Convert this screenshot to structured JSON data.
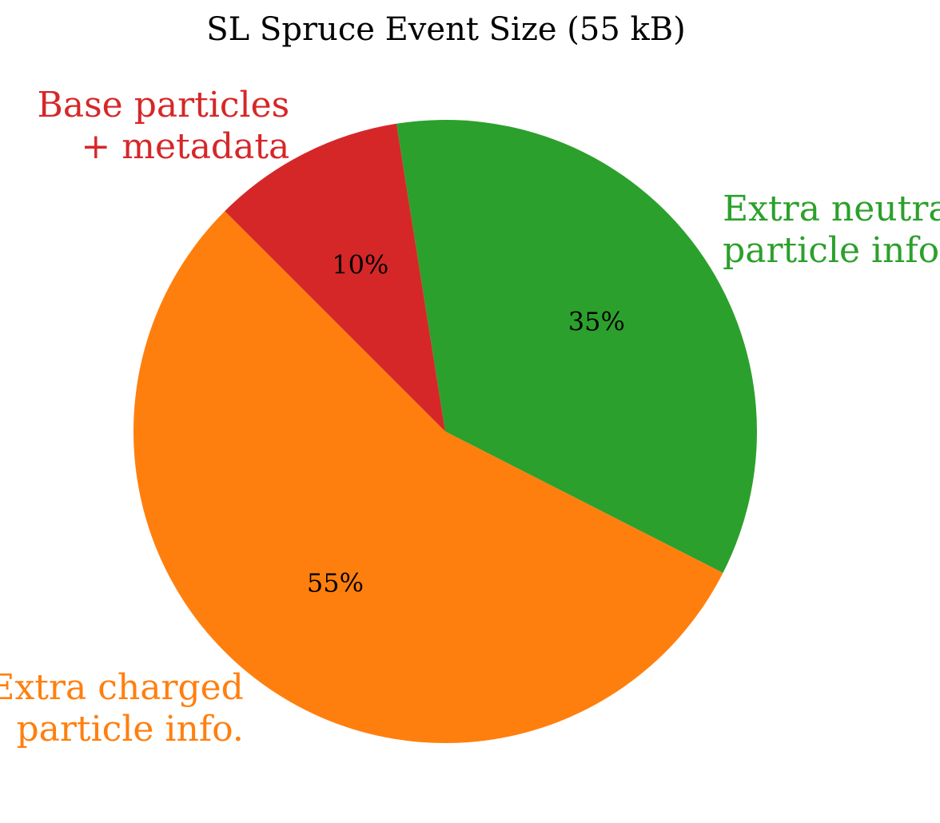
{
  "chart_data": {
    "type": "pie",
    "title": "SL Spruce Event Size (55 kB)",
    "slices": [
      {
        "label_lines": [
          "Extra neutral",
          "particle info."
        ],
        "value": 35,
        "pct_label": "35%",
        "color": "#2ca02c"
      },
      {
        "label_lines": [
          "Extra charged",
          "particle info."
        ],
        "value": 55,
        "pct_label": "55%",
        "color": "#ff7f0e"
      },
      {
        "label_lines": [
          "Base particles",
          "+ metadata"
        ],
        "value": 10,
        "pct_label": "10%",
        "color": "#d62728"
      }
    ],
    "start_angle_deg": 99,
    "direction": "clockwise",
    "legend": "none"
  }
}
